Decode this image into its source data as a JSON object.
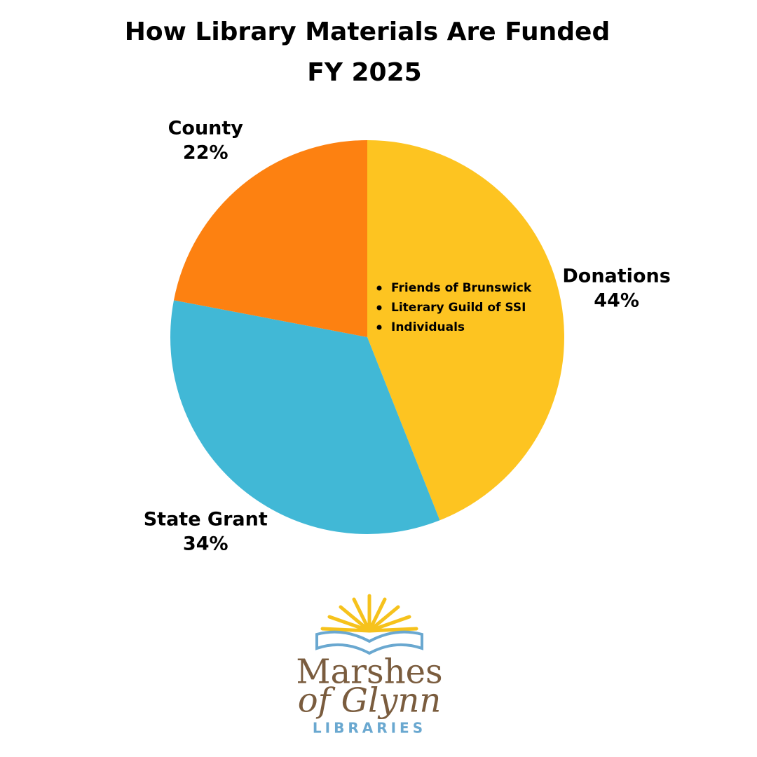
{
  "chart_data": {
    "type": "pie",
    "title": "How Library Materials Are Funded",
    "subtitle": "FY 2025",
    "categories": [
      "Donations",
      "State Grant",
      "County"
    ],
    "values": [
      44,
      34,
      22
    ],
    "value_labels": [
      "44%",
      "34%",
      "22%"
    ],
    "colors": [
      "#fdc421",
      "#41b8d6",
      "#fd8111"
    ],
    "annotations": [
      "Friends of Brunswick",
      "Literary Guild of SSI",
      "Individuals"
    ]
  },
  "logo": {
    "line1": "Marshes",
    "line2": "of Glynn",
    "line3": "LIBRARIES"
  }
}
